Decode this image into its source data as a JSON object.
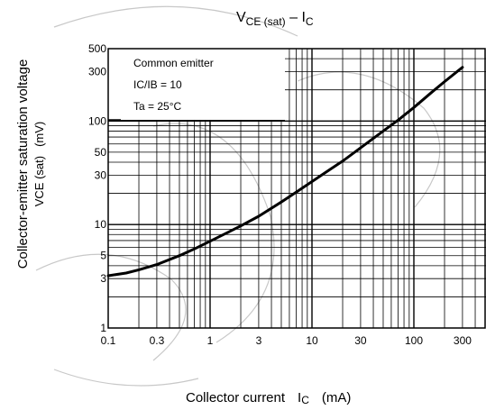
{
  "chart_data": {
    "type": "line",
    "scale": {
      "x": "log",
      "y": "log"
    },
    "title": {
      "main": "V",
      "sub": "CE (sat)",
      "dash": " – I",
      "sub2": "C"
    },
    "xlabel": {
      "text": "Collector current",
      "symbol": "I",
      "symbol_sub": "C",
      "unit": "(mA)"
    },
    "ylabel": {
      "line1": "Collector-emitter saturation voltage",
      "line2_symbol": "V",
      "line2_sub": "CE (sat)",
      "line2_unit": "(mV)"
    },
    "xlim": [
      0.1,
      500
    ],
    "ylim": [
      1,
      500
    ],
    "x_ticks": [
      {
        "value": 0.1,
        "label": "0.1"
      },
      {
        "value": 0.3,
        "label": "0.3"
      },
      {
        "value": 1,
        "label": "1"
      },
      {
        "value": 3,
        "label": "3"
      },
      {
        "value": 10,
        "label": "10"
      },
      {
        "value": 30,
        "label": "30"
      },
      {
        "value": 100,
        "label": "100"
      },
      {
        "value": 300,
        "label": "300"
      }
    ],
    "y_ticks": [
      {
        "value": 1,
        "label": "1"
      },
      {
        "value": 3,
        "label": "3"
      },
      {
        "value": 5,
        "label": "5"
      },
      {
        "value": 10,
        "label": "10"
      },
      {
        "value": 30,
        "label": "30"
      },
      {
        "value": 50,
        "label": "50"
      },
      {
        "value": 100,
        "label": "100"
      },
      {
        "value": 300,
        "label": "300"
      },
      {
        "value": 500,
        "label": "500"
      }
    ],
    "annotations": [
      "Common emitter",
      "IC/IB = 10",
      "Ta = 25°C"
    ],
    "series": [
      {
        "x": [
          0.1,
          0.15,
          0.2,
          0.3,
          0.5,
          0.7,
          1,
          1.5,
          2,
          3,
          5,
          7,
          10,
          15,
          20,
          30,
          50,
          70,
          100,
          150,
          200,
          300
        ],
        "y": [
          3.2,
          3.4,
          3.65,
          4.1,
          5.0,
          5.8,
          6.9,
          8.4,
          9.7,
          12,
          16.5,
          20.5,
          26,
          34,
          41,
          55,
          80,
          102,
          135,
          190,
          240,
          330
        ]
      }
    ],
    "grid": true,
    "colors": {
      "line": "#000000",
      "grid": "#000000",
      "watermark": "#c8c8c8"
    }
  }
}
